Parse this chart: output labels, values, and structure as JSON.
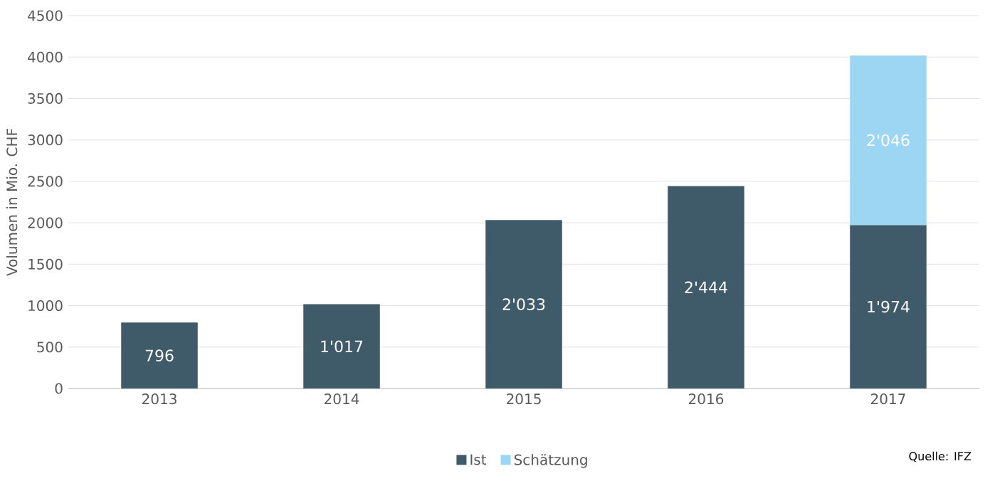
{
  "chart_data": {
    "type": "bar",
    "stacked": true,
    "ylabel": "Volumen in Mio. CHF",
    "categories": [
      "2013",
      "2014",
      "2015",
      "2016",
      "2017"
    ],
    "series": [
      {
        "name": "Ist",
        "color": "#3f5b6a",
        "values": [
          796,
          1017,
          2033,
          2444,
          1974
        ],
        "value_labels": [
          "796",
          "1'017",
          "2'033",
          "2'444",
          "1'974"
        ]
      },
      {
        "name": "Schätzung",
        "color": "#9dd6f2",
        "values": [
          null,
          null,
          null,
          null,
          2046
        ],
        "value_labels": [
          null,
          null,
          null,
          null,
          "2'046"
        ]
      }
    ],
    "ylim": [
      0,
      4500
    ],
    "yticks": [
      0,
      500,
      1000,
      1500,
      2000,
      2500,
      3000,
      3500,
      4000,
      4500
    ],
    "grid": "y",
    "legend": "bottom",
    "annotations": [
      "Quelle: IFZ"
    ]
  }
}
